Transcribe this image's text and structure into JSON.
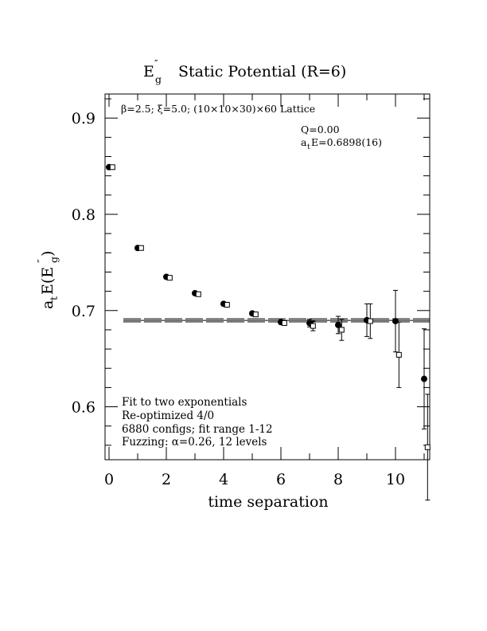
{
  "chart_data": {
    "type": "scatter",
    "title_main": "E",
    "title_sup": "″",
    "title_sub": "g",
    "title_rest": "Static Potential (R=6)",
    "ylabel_pre": "a",
    "ylabel_pre_sub": "t",
    "ylabel_mid": "E(E",
    "ylabel_sup": "″",
    "ylabel_sub": "g",
    "ylabel_post": " )",
    "xlabel": "time separation",
    "xlim": [
      0,
      11.2
    ],
    "ylim": [
      0.545,
      0.925
    ],
    "x_ticks": [
      0,
      2,
      4,
      6,
      8,
      10
    ],
    "y_ticks": [
      0.6,
      0.7,
      0.8,
      0.9
    ],
    "x_tick_labels": [
      "0",
      "2",
      "4",
      "6",
      "8",
      "10"
    ],
    "y_tick_labels": [
      "0.6",
      "0.7",
      "0.8",
      "0.9"
    ],
    "lattice_text": "β=2.5; ξ=5.0; (10×10×30)×60 Lattice",
    "q_text": "Q=0.00",
    "fit_energy_pre": "a",
    "fit_energy_sub": "t",
    "fit_energy_post": "E=0.6898(16)",
    "fit_value": 0.6898,
    "fit_error": 0.0016,
    "fit_x_range": [
      0.5,
      11.2
    ],
    "notes": [
      "Fit to two exponentials",
      "Re-optimized 4/0",
      "6880 configs; fit range 1-12",
      "Fuzzing: α=0.26, 12 levels"
    ],
    "series": [
      {
        "marker": "filled-circle",
        "x": [
          0,
          1,
          2,
          3,
          4,
          5,
          6,
          7,
          8,
          9,
          10,
          11
        ],
        "y": [
          0.849,
          0.765,
          0.735,
          0.718,
          0.707,
          0.697,
          0.688,
          0.687,
          0.685,
          0.69,
          0.689,
          0.629
        ],
        "err": [
          0.0008,
          0.001,
          0.001,
          0.001,
          0.0012,
          0.0015,
          0.002,
          0.004,
          0.009,
          0.017,
          0.032,
          0.052
        ]
      },
      {
        "marker": "open-square",
        "x": [
          0.12,
          1.12,
          2.12,
          3.12,
          4.12,
          5.12,
          6.12,
          7.12,
          8.12,
          9.12,
          10.12,
          11.12
        ],
        "y": [
          0.849,
          0.765,
          0.734,
          0.717,
          0.706,
          0.696,
          0.687,
          0.684,
          0.68,
          0.689,
          0.654,
          0.558
        ],
        "err": [
          0.0008,
          0.001,
          0.001,
          0.001,
          0.0012,
          0.0015,
          0.002,
          0.005,
          0.011,
          0.018,
          0.034,
          0.055
        ]
      }
    ]
  }
}
